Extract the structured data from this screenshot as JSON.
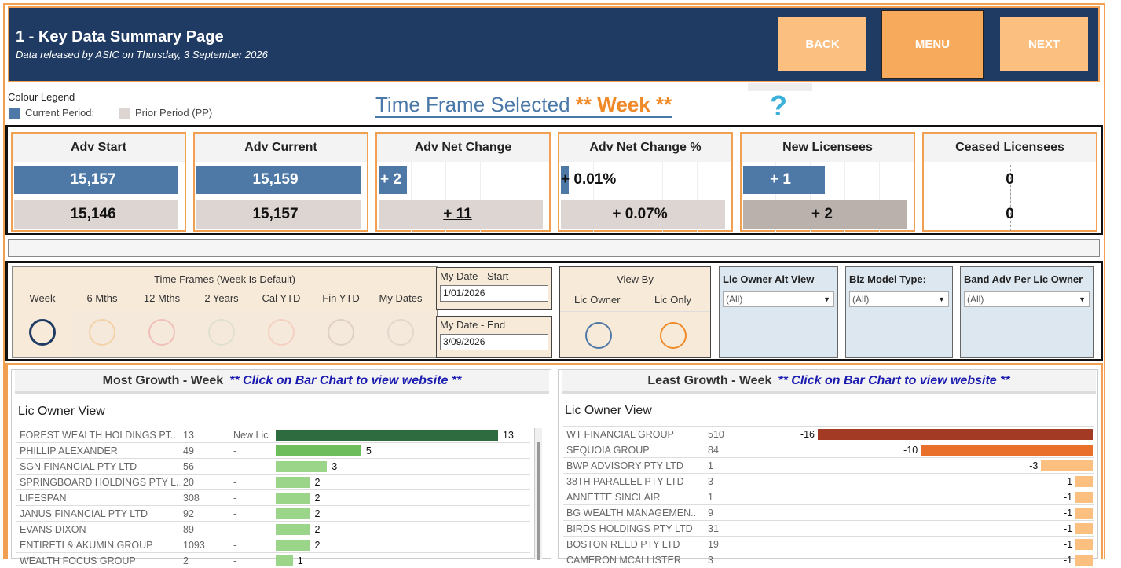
{
  "header": {
    "title": "1 - Key Data Summary Page",
    "subtitle": "Data released by ASIC on Thursday, 3 September 2026",
    "back_label": "BACK",
    "menu_label": "MENU",
    "next_label": "NEXT"
  },
  "legend": {
    "title": "Colour Legend",
    "current": "Current Period:",
    "prior": "Prior Period (PP)",
    "current_color": "#4e79a7",
    "prior_color": "#ddd5d2"
  },
  "timeframe": {
    "prefix": "Time Frame Selected ",
    "value": "** Week **",
    "help": "?"
  },
  "kpis": [
    {
      "title": "Adv Start",
      "current": "15,157",
      "prior": "15,146"
    },
    {
      "title": "Adv Current",
      "current": "15,159",
      "prior": "15,157"
    },
    {
      "title": "Adv Net Change",
      "current": "+ 2",
      "prior": "+ 11"
    },
    {
      "title": "Adv Net Change %",
      "current": "+ 0.01%",
      "prior": "+ 0.07%"
    },
    {
      "title": "New Licensees",
      "current": "+ 1",
      "prior": "+ 2"
    },
    {
      "title": "Ceased Licensees",
      "current": "0",
      "prior": "0"
    }
  ],
  "filters": {
    "timeframes_title": "Time Frames (Week Is Default)",
    "timeframes": [
      "Week",
      "6 Mths",
      "12 Mths",
      "2 Years",
      "Cal YTD",
      "Fin YTD",
      "My Dates"
    ],
    "date_start_label": "My Date - Start",
    "date_start": "1/01/2026",
    "date_end_label": "My Date - End",
    "date_end": "3/09/2026",
    "viewby_title": "View By",
    "viewby_options": [
      "Lic Owner",
      "Lic Only"
    ],
    "dropdowns": [
      {
        "label": "Lic Owner Alt View",
        "value": "(All)"
      },
      {
        "label": "Biz Model Type:",
        "value": "(All)"
      },
      {
        "label": "Band Adv Per Lic Owner",
        "value": "(All)"
      }
    ]
  },
  "most_growth": {
    "title": "Most Growth - Week",
    "click_note": "** Click on Bar Chart to view website **",
    "view_label": "Lic Owner View",
    "rows": [
      {
        "name": "FOREST WEALTH HOLDINGS PT..",
        "adv": "13",
        "status": "New Lic",
        "value": 13
      },
      {
        "name": "PHILLIP  ALEXANDER",
        "adv": "49",
        "status": "-",
        "value": 5
      },
      {
        "name": "SGN FINANCIAL PTY LTD",
        "adv": "56",
        "status": "-",
        "value": 3
      },
      {
        "name": "SPRINGBOARD HOLDINGS PTY L..",
        "adv": "20",
        "status": "-",
        "value": 2
      },
      {
        "name": "LIFESPAN",
        "adv": "308",
        "status": "-",
        "value": 2
      },
      {
        "name": "JANUS FINANCIAL PTY LTD",
        "adv": "92",
        "status": "-",
        "value": 2
      },
      {
        "name": "EVANS DIXON",
        "adv": "89",
        "status": "-",
        "value": 2
      },
      {
        "name": "ENTIRETI & AKUMIN GROUP",
        "adv": "1093",
        "status": "-",
        "value": 2
      },
      {
        "name": "WEALTH FOCUS GROUP",
        "adv": "2",
        "status": "-",
        "value": 1
      }
    ]
  },
  "least_growth": {
    "title": "Least Growth - Week",
    "click_note": "** Click on Bar Chart to view website **",
    "view_label": "Lic Owner View",
    "rows": [
      {
        "name": "WT FINANCIAL GROUP",
        "adv": "510",
        "value": -16
      },
      {
        "name": "SEQUOIA GROUP",
        "adv": "84",
        "value": -10
      },
      {
        "name": "BWP ADVISORY PTY LTD",
        "adv": "1",
        "value": -3
      },
      {
        "name": "38TH PARALLEL PTY LTD",
        "adv": "3",
        "value": -1
      },
      {
        "name": "ANNETTE  SINCLAIR",
        "adv": "1",
        "value": -1
      },
      {
        "name": "BG WEALTH MANAGEMEN..",
        "adv": "9",
        "value": -1
      },
      {
        "name": "BIRDS HOLDINGS PTY LTD",
        "adv": "31",
        "value": -1
      },
      {
        "name": "BOSTON REED PTY LTD",
        "adv": "19",
        "value": -1
      },
      {
        "name": "CAMERON  MCALLISTER",
        "adv": "3",
        "value": -1
      }
    ]
  }
}
